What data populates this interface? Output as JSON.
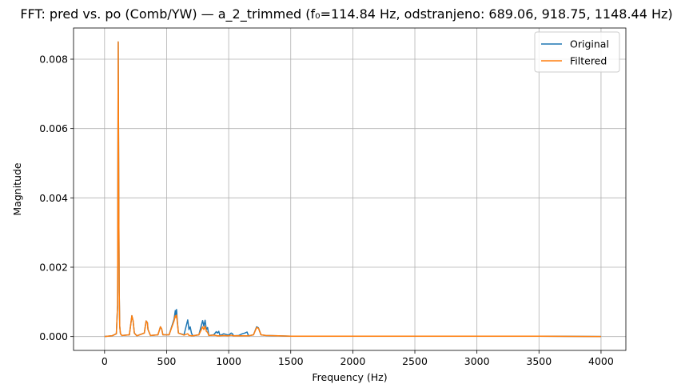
{
  "chart_data": {
    "type": "line",
    "title": "FFT: pred vs. po (Comb/YW) — a_2_trimmed (f₀=114.84 Hz, odstranjeno: 689.06, 918.75, 1148.44 Hz)",
    "xlabel": "Frequency (Hz)",
    "ylabel": "Magnitude",
    "xlim": [
      -250,
      4200
    ],
    "ylim": [
      -0.0004,
      0.0089
    ],
    "xticks": [
      0,
      500,
      1000,
      1500,
      2000,
      2500,
      3000,
      3500,
      4000
    ],
    "yticks": [
      0.0,
      0.002,
      0.004,
      0.006,
      0.008
    ],
    "xtick_labels": [
      "0",
      "500",
      "1000",
      "1500",
      "2000",
      "2500",
      "3000",
      "3500",
      "4000"
    ],
    "ytick_labels": [
      "0.000",
      "0.002",
      "0.004",
      "0.006",
      "0.008"
    ],
    "grid": true,
    "legend_position": "upper right",
    "series": [
      {
        "name": "Original",
        "color": "#1f77b4",
        "x": [
          0,
          60,
          95,
          105,
          110,
          115,
          118,
          122,
          128,
          140,
          200,
          220,
          230,
          240,
          260,
          320,
          335,
          345,
          350,
          370,
          430,
          450,
          460,
          470,
          520,
          560,
          570,
          575,
          580,
          585,
          595,
          640,
          670,
          680,
          690,
          700,
          710,
          760,
          790,
          800,
          810,
          820,
          830,
          840,
          880,
          900,
          910,
          920,
          930,
          960,
          1000,
          1020,
          1030,
          1040,
          1080,
          1110,
          1130,
          1148,
          1160,
          1200,
          1225,
          1240,
          1260,
          1300,
          1400,
          1500,
          1600,
          2000,
          2500,
          3000,
          3500,
          4000
        ],
        "y": [
          0.0,
          2e-05,
          8e-05,
          0.0009,
          0.0085,
          0.0035,
          0.0013,
          0.0003,
          8e-05,
          3e-05,
          5e-05,
          0.0006,
          0.00045,
          0.0001,
          2e-05,
          0.0001,
          0.00045,
          0.0004,
          0.0002,
          3e-05,
          5e-05,
          0.00028,
          0.00022,
          5e-05,
          5e-05,
          0.0005,
          0.00075,
          0.0006,
          0.00078,
          0.0005,
          0.0001,
          5e-05,
          0.00048,
          0.0002,
          0.00028,
          0.0001,
          2e-05,
          5e-05,
          0.00046,
          0.0003,
          0.00047,
          0.0002,
          0.00026,
          3e-05,
          5e-05,
          0.00014,
          0.0001,
          0.00015,
          3e-05,
          8e-05,
          4e-05,
          0.0001,
          8e-05,
          2e-05,
          3e-05,
          8e-05,
          0.0001,
          0.00013,
          2e-05,
          5e-05,
          0.00028,
          0.00025,
          5e-05,
          3e-05,
          2e-05,
          1e-05,
          1e-05,
          1e-05,
          1e-05,
          1e-05,
          1e-05,
          0.0
        ]
      },
      {
        "name": "Filtered",
        "color": "#ff7f0e",
        "x": [
          0,
          60,
          95,
          105,
          110,
          115,
          118,
          122,
          128,
          140,
          200,
          220,
          230,
          240,
          260,
          320,
          335,
          345,
          350,
          370,
          430,
          450,
          460,
          470,
          520,
          560,
          570,
          575,
          580,
          585,
          595,
          640,
          670,
          680,
          690,
          700,
          710,
          760,
          790,
          800,
          810,
          820,
          830,
          840,
          880,
          900,
          910,
          920,
          930,
          960,
          1000,
          1020,
          1030,
          1040,
          1080,
          1110,
          1130,
          1148,
          1160,
          1200,
          1225,
          1240,
          1260,
          1300,
          1400,
          1500,
          1600,
          2000,
          2500,
          3000,
          3500,
          4000
        ],
        "y": [
          0.0,
          2e-05,
          8e-05,
          0.0009,
          0.0085,
          0.0035,
          0.0013,
          0.0003,
          8e-05,
          3e-05,
          5e-05,
          0.0006,
          0.00045,
          0.0001,
          2e-05,
          0.0001,
          0.00045,
          0.0004,
          0.0002,
          3e-05,
          5e-05,
          0.00028,
          0.00022,
          5e-05,
          5e-05,
          0.00045,
          0.0006,
          0.00055,
          0.00062,
          0.00045,
          0.0001,
          4e-05,
          8e-05,
          3e-05,
          3e-05,
          2e-05,
          2e-05,
          5e-05,
          0.00028,
          0.0002,
          0.0003,
          0.00015,
          0.00012,
          3e-05,
          4e-05,
          3e-05,
          2e-05,
          2e-05,
          2e-05,
          3e-05,
          2e-05,
          4e-05,
          3e-05,
          2e-05,
          2e-05,
          2e-05,
          2e-05,
          2e-05,
          2e-05,
          5e-05,
          0.00026,
          0.00024,
          5e-05,
          3e-05,
          2e-05,
          1e-05,
          1e-05,
          1e-05,
          1e-05,
          1e-05,
          1e-05,
          0.0
        ]
      }
    ]
  }
}
